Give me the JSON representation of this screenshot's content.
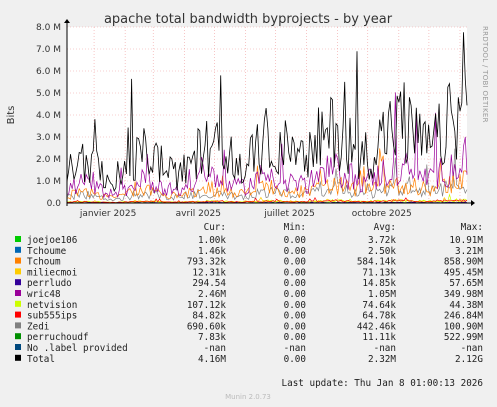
{
  "chart_data": {
    "type": "line",
    "title": "apache total bandwidth byprojects - by year",
    "ylabel": "Bits",
    "side_label": "RRDTOOL / TOBI OETIKER",
    "ylim": [
      0,
      8000000
    ],
    "y_ticks": [
      "0.0",
      "1.0 M",
      "2.0 M",
      "3.0 M",
      "4.0 M",
      "5.0 M",
      "6.0 M",
      "7.0 M",
      "8.0 M"
    ],
    "x_ticks": [
      "janvier 2025",
      "avril 2025",
      "juillet 2025",
      "octobre 2025"
    ],
    "x_range": [
      "2024-12-05",
      "2026-01-08"
    ],
    "grid": true,
    "background": "#ffffff",
    "canvas_color": "#f0f0f0",
    "legend_headers": [
      "Cur:",
      "Min:",
      "Avg:",
      "Max:"
    ],
    "series": [
      {
        "name": "joejoe106",
        "color": "#00cc00",
        "cur": "1.00k",
        "min": "0.00",
        "avg": "3.72k",
        "max": "10.91M",
        "level": 3720
      },
      {
        "name": "Tchoume",
        "color": "#0066b3",
        "cur": "1.46k",
        "min": "0.00",
        "avg": "2.50k",
        "max": "3.21M",
        "level": 2500
      },
      {
        "name": "Tchoum",
        "color": "#ff8000",
        "cur": "793.32k",
        "min": "0.00",
        "avg": "584.14k",
        "max": "858.90M",
        "level": 584140
      },
      {
        "name": "miliecmoi",
        "color": "#ffcc00",
        "cur": "12.31k",
        "min": "0.00",
        "avg": "71.13k",
        "max": "495.45M",
        "level": 71130
      },
      {
        "name": "perrludo",
        "color": "#330099",
        "cur": "294.54",
        "min": "0.00",
        "avg": "14.85k",
        "max": "57.65M",
        "level": 14850
      },
      {
        "name": "wric48",
        "color": "#990099",
        "cur": "2.46M",
        "min": "0.00",
        "avg": "1.05M",
        "max": "349.98M",
        "level": 1050000
      },
      {
        "name": "netvision",
        "color": "#ccff00",
        "cur": "107.12k",
        "min": "0.00",
        "avg": "74.64k",
        "max": "44.38M",
        "level": 74640
      },
      {
        "name": "sub555ips",
        "color": "#ff0000",
        "cur": "84.82k",
        "min": "0.00",
        "avg": "64.78k",
        "max": "246.84M",
        "level": 64780
      },
      {
        "name": "Zedi",
        "color": "#808080",
        "cur": "690.60k",
        "min": "0.00",
        "avg": "442.46k",
        "max": "100.90M",
        "level": 442460
      },
      {
        "name": "perruchoudf",
        "color": "#008f00",
        "cur": "7.83k",
        "min": "0.00",
        "avg": "11.11k",
        "max": "522.99M",
        "level": 11110
      },
      {
        "name": "No .label provided",
        "color": "#00487d",
        "cur": "-nan",
        "min": "-nan",
        "avg": "-nan",
        "max": "-nan",
        "level": null
      },
      {
        "name": "Total",
        "color": "#000000",
        "cur": "4.16M",
        "min": "0.00",
        "avg": "2.32M",
        "max": "2.12G",
        "level": 2320000
      }
    ],
    "footer": "Last update:  Thu Jan  8 01:00:13 2026",
    "version": "Munin 2.0.73"
  }
}
